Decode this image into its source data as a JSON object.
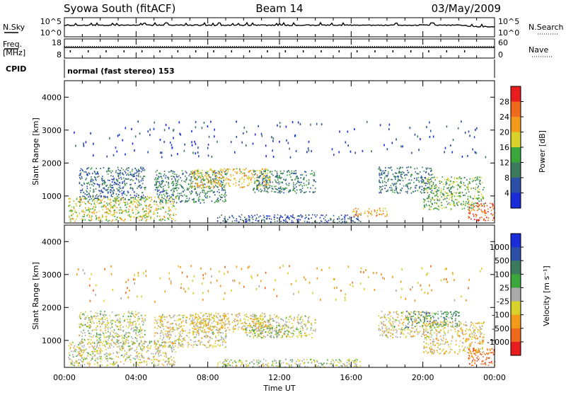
{
  "header": {
    "station": "Syowa South (fitACF)",
    "beam": "Beam 14",
    "date": "03/May/2009"
  },
  "aux": {
    "nsky_label": "N.Sky",
    "nsearch_label": "N.Search",
    "freq_label_1": "Freq.",
    "freq_label_2": "[MHz]",
    "nave_label": "Nave",
    "cpid_label": "CPID",
    "cpid_text": "normal (fast stereo) 153",
    "noise_ticks": [
      "10^5",
      "10^0"
    ],
    "freq_ticks": [
      "18",
      "8"
    ],
    "nave_ticks": [
      "60",
      "0"
    ]
  },
  "time_axis": {
    "label": "Time UT",
    "ticks": [
      "00:00",
      "04:00",
      "08:00",
      "12:00",
      "16:00",
      "20:00",
      "00:00"
    ]
  },
  "chart_data": [
    {
      "type": "heatmap",
      "name": "power",
      "ylabel": "Slant Range [km]",
      "ylim": [
        180,
        4500
      ],
      "xlim": [
        0,
        24
      ],
      "yticks": [
        1000,
        2000,
        3000,
        4000
      ],
      "colorbar": {
        "label": "Power [dB]",
        "ticks": [
          4,
          8,
          12,
          16,
          20,
          24,
          28
        ],
        "range": [
          0,
          32
        ],
        "colors": [
          "#1a2bd8",
          "#2b4ea6",
          "#3c7a5e",
          "#3ba63a",
          "#d8d22a",
          "#f39a1a",
          "#ef6a1e",
          "#e81e1e"
        ]
      },
      "regions": [
        {
          "t0": 0.2,
          "t1": 6.2,
          "r0": 250,
          "r1": 1000,
          "level": 18
        },
        {
          "t0": 0.8,
          "t1": 4.5,
          "r0": 900,
          "r1": 1900,
          "level": 8
        },
        {
          "t0": 5.0,
          "t1": 9.0,
          "r0": 800,
          "r1": 1800,
          "level": 10
        },
        {
          "t0": 7.0,
          "t1": 11.5,
          "r0": 1250,
          "r1": 1850,
          "level": 20
        },
        {
          "t0": 10.5,
          "t1": 14.0,
          "r0": 1100,
          "r1": 1800,
          "level": 10
        },
        {
          "t0": 8.5,
          "t1": 16.5,
          "r0": 200,
          "r1": 450,
          "level": 6
        },
        {
          "t0": 16.0,
          "t1": 18.0,
          "r0": 400,
          "r1": 650,
          "level": 22
        },
        {
          "t0": 17.5,
          "t1": 20.5,
          "r0": 1100,
          "r1": 1900,
          "level": 9
        },
        {
          "t0": 20.0,
          "t1": 23.4,
          "r0": 600,
          "r1": 1600,
          "level": 14
        },
        {
          "t0": 22.5,
          "t1": 24.0,
          "r0": 250,
          "r1": 800,
          "level": 26
        },
        {
          "t0": 0.5,
          "t1": 23.5,
          "r0": 2200,
          "r1": 3300,
          "level": 5
        }
      ]
    },
    {
      "type": "heatmap",
      "name": "velocity",
      "ylabel": "Slant Range [km]",
      "ylim": [
        180,
        4500
      ],
      "xlim": [
        0,
        24
      ],
      "yticks": [
        1000,
        2000,
        3000,
        4000
      ],
      "colorbar": {
        "label": "Velocity [m s⁻¹]",
        "ticks": [
          "1000",
          "500",
          "100",
          "25",
          "-25",
          "-100",
          "-500",
          "-1000"
        ],
        "range": [
          -1200,
          1200
        ],
        "colors": [
          "#1a2bd8",
          "#2b4ea6",
          "#3c7a5e",
          "#3ba63a",
          "#aaaaaa",
          "#d8d22a",
          "#f39a1a",
          "#ef6a1e",
          "#e81e1e"
        ]
      },
      "regions": [
        {
          "t0": 0.2,
          "t1": 6.2,
          "r0": 250,
          "r1": 1000,
          "level": -150
        },
        {
          "t0": 0.8,
          "t1": 4.5,
          "r0": 900,
          "r1": 1900,
          "level": -80
        },
        {
          "t0": 5.0,
          "t1": 9.0,
          "r0": 800,
          "r1": 1800,
          "level": -200
        },
        {
          "t0": 7.0,
          "t1": 11.5,
          "r0": 1250,
          "r1": 1850,
          "level": -300
        },
        {
          "t0": 10.0,
          "t1": 12.5,
          "r0": 1100,
          "r1": 1500,
          "level": 0
        },
        {
          "t0": 10.5,
          "t1": 14.0,
          "r0": 1100,
          "r1": 1800,
          "level": -120
        },
        {
          "t0": 8.5,
          "t1": 16.5,
          "r0": 200,
          "r1": 450,
          "level": -60
        },
        {
          "t0": 17.5,
          "t1": 20.5,
          "r0": 1100,
          "r1": 1900,
          "level": -150
        },
        {
          "t0": 19.0,
          "t1": 22.0,
          "r0": 1400,
          "r1": 1900,
          "level": 400
        },
        {
          "t0": 20.0,
          "t1": 23.4,
          "r0": 600,
          "r1": 1600,
          "level": -300
        },
        {
          "t0": 22.5,
          "t1": 24.0,
          "r0": 250,
          "r1": 800,
          "level": -800
        },
        {
          "t0": 0.5,
          "t1": 23.5,
          "r0": 2200,
          "r1": 3300,
          "level": -400
        }
      ]
    }
  ]
}
